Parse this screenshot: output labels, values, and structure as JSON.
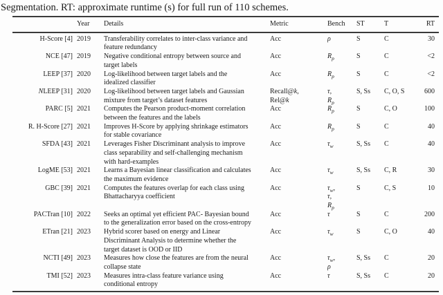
{
  "caption": "Segmentation. RT: approximate runtime (s) for full run of 110 schemes.",
  "table": {
    "headers": {
      "name": "",
      "year": "Year",
      "details": "Details",
      "metric": "Metric",
      "bench": "Bench",
      "st": "ST",
      "t": "T",
      "rt": "RT"
    },
    "rows": [
      {
        "name": "H-Score [4]",
        "year": "2019",
        "details": "Transferability correlates to inter-class variance and\nfeature redundancy",
        "metric": "Acc",
        "bench": "ρ",
        "st": "S",
        "t": "C",
        "rt": "30"
      },
      {
        "name": "NCE [47]",
        "year": "2019",
        "details": "Negative conditional entropy between source and\ntarget labels",
        "metric": "Acc",
        "bench": "R_p",
        "st": "S",
        "t": "C",
        "rt": "<2"
      },
      {
        "name": "LEEP [37]",
        "year": "2020",
        "details": "Log-likelihood between target labels and the\nidealized classifier",
        "metric": "Acc",
        "bench": "R_p",
        "st": "S",
        "t": "C",
        "rt": "<2"
      },
      {
        "name": "𝒩LEEP [31]",
        "year": "2020",
        "details": "Log-likelihood between target labels and Gaussian\nmixture from target’s dataset features",
        "metric": "Recall@k,\nRel@k",
        "bench": "τ,\nR_p",
        "st": "S, Ss",
        "t": "C, O, S",
        "rt": "600"
      },
      {
        "name": "PARC [5]",
        "year": "2021",
        "details": "Computes the Pearson product-moment correlation\nbetween the features and the labels",
        "metric": "Acc",
        "bench": "R_p",
        "st": "S",
        "t": "C, O",
        "rt": "100"
      },
      {
        "name": "R. H-Score [27]",
        "year": "2021",
        "details": "Improves H-Score by applying shrinkage estimators\nfor stable covariance",
        "metric": "Acc",
        "bench": "R_p",
        "st": "S",
        "t": "C",
        "rt": "40"
      },
      {
        "name": "SFDA [43]",
        "year": "2021",
        "details": "Leverages Fisher Discriminant analysis to improve\nclass separability and self-challenging mechanism\nwith hard-examples",
        "metric": "Acc",
        "bench": "τ_w",
        "st": "S, Ss",
        "t": "C",
        "rt": "40"
      },
      {
        "name": "LogME [53]",
        "year": "2021",
        "details": "Learns a Bayesian linear classification and calculates\nthe maximum evidence",
        "metric": "Acc",
        "bench": "τ_w",
        "st": "S, Ss",
        "t": "C, R",
        "rt": "30"
      },
      {
        "name": "GBC [39]",
        "year": "2021",
        "details": "Computes the features overlap for each class using\nBhattacharyya coefficient",
        "metric": "Acc",
        "bench": "τ_w,\nτ,\nR_p",
        "st": "S",
        "t": "C, S",
        "rt": "10"
      },
      {
        "name": "PACTran [10]",
        "year": "2022",
        "details": "Seeks an optimal yet efficient PAC- Bayesian bound\nto the generalization error based on the cross-entropy",
        "metric": "Acc",
        "bench": "τ",
        "st": "S",
        "t": "C",
        "rt": "200"
      },
      {
        "name": "ETran [21]",
        "year": "2023",
        "details": "Hybrid scorer based on energy and Linear\nDiscriminant Analysis to determine whether the\ntarget dataset is OOD or IID",
        "metric": "Acc",
        "bench": "τ_w",
        "st": "S",
        "t": "C, O",
        "rt": "40"
      },
      {
        "name": "NCTI [49]",
        "year": "2023",
        "details": "Measures how close the features are from the neural\ncollapse state",
        "metric": "Acc",
        "bench": "τ_w,\nρ",
        "st": "S, Ss",
        "t": "C",
        "rt": "20"
      },
      {
        "name": "TMI [52]",
        "year": "2023",
        "details": "Measures intra-class feature variance using\nconditional entropy",
        "metric": "Acc",
        "bench": "τ",
        "st": "S, Ss",
        "t": "C",
        "rt": "20"
      }
    ]
  }
}
